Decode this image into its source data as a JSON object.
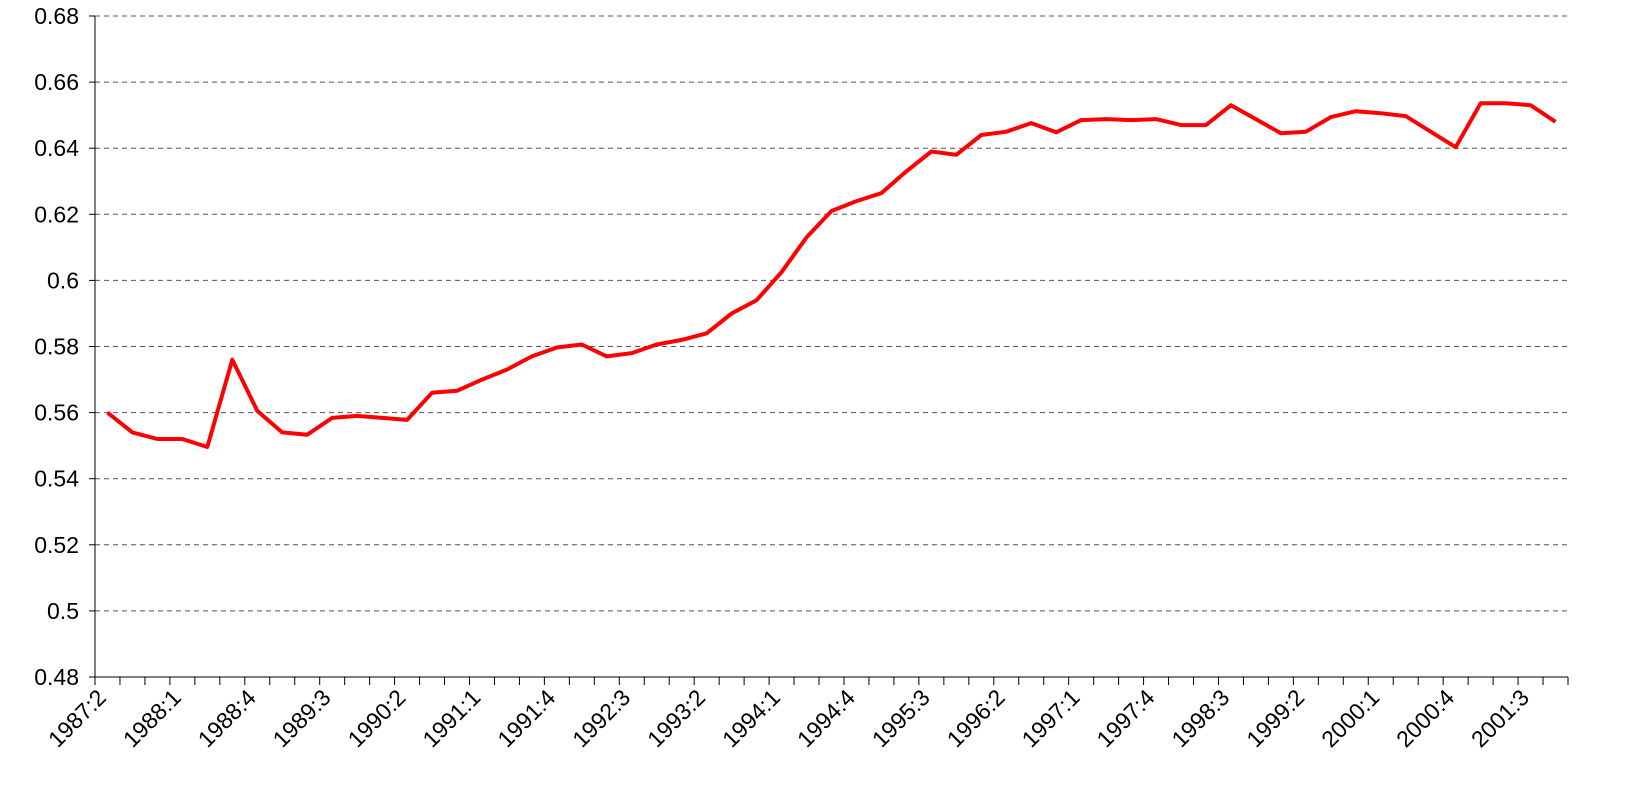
{
  "chart_data": {
    "type": "line",
    "categories": [
      "1987:2",
      null,
      null,
      "1988:1",
      null,
      null,
      "1988:4",
      null,
      null,
      "1989:3",
      null,
      null,
      "1990:2",
      null,
      null,
      "1991:1",
      null,
      null,
      "1991:4",
      null,
      null,
      "1992:3",
      null,
      null,
      "1993:2",
      null,
      null,
      "1994:1",
      null,
      null,
      "1994:4",
      null,
      null,
      "1995:3",
      null,
      null,
      "1996:2",
      null,
      null,
      "1997:1",
      null,
      null,
      "1997:4",
      null,
      null,
      "1998:3",
      null,
      null,
      "1999:2",
      null,
      null,
      "2000:1",
      null,
      null,
      "2000:4",
      null,
      null,
      "2001:3",
      null
    ],
    "series": [
      {
        "color": "#ff0000",
        "values": [
          0.56,
          0.554,
          0.552,
          0.552,
          0.5496,
          0.576,
          0.5605,
          0.554,
          0.5533,
          0.5584,
          0.559,
          0.5584,
          0.5578,
          0.566,
          0.5666,
          0.57,
          0.573,
          0.577,
          0.5797,
          0.5806,
          0.577,
          0.578,
          0.5806,
          0.582,
          0.584,
          0.59,
          0.594,
          0.6025,
          0.613,
          0.621,
          0.624,
          0.6264,
          0.633,
          0.639,
          0.638,
          0.644,
          0.645,
          0.6476,
          0.6448,
          0.6485,
          0.6488,
          0.6485,
          0.6488,
          0.647,
          0.647,
          0.653,
          0.6488,
          0.6445,
          0.645,
          0.6494,
          0.6512,
          0.6506,
          0.6497,
          0.645,
          0.6403,
          0.6536,
          0.6536,
          0.653,
          0.648
        ]
      }
    ],
    "ylim": [
      0.48,
      0.68
    ],
    "yticks": [
      0.48,
      0.5,
      0.52,
      0.54,
      0.56,
      0.58,
      0.6,
      0.62,
      0.64,
      0.66,
      0.68
    ],
    "grid": true
  }
}
